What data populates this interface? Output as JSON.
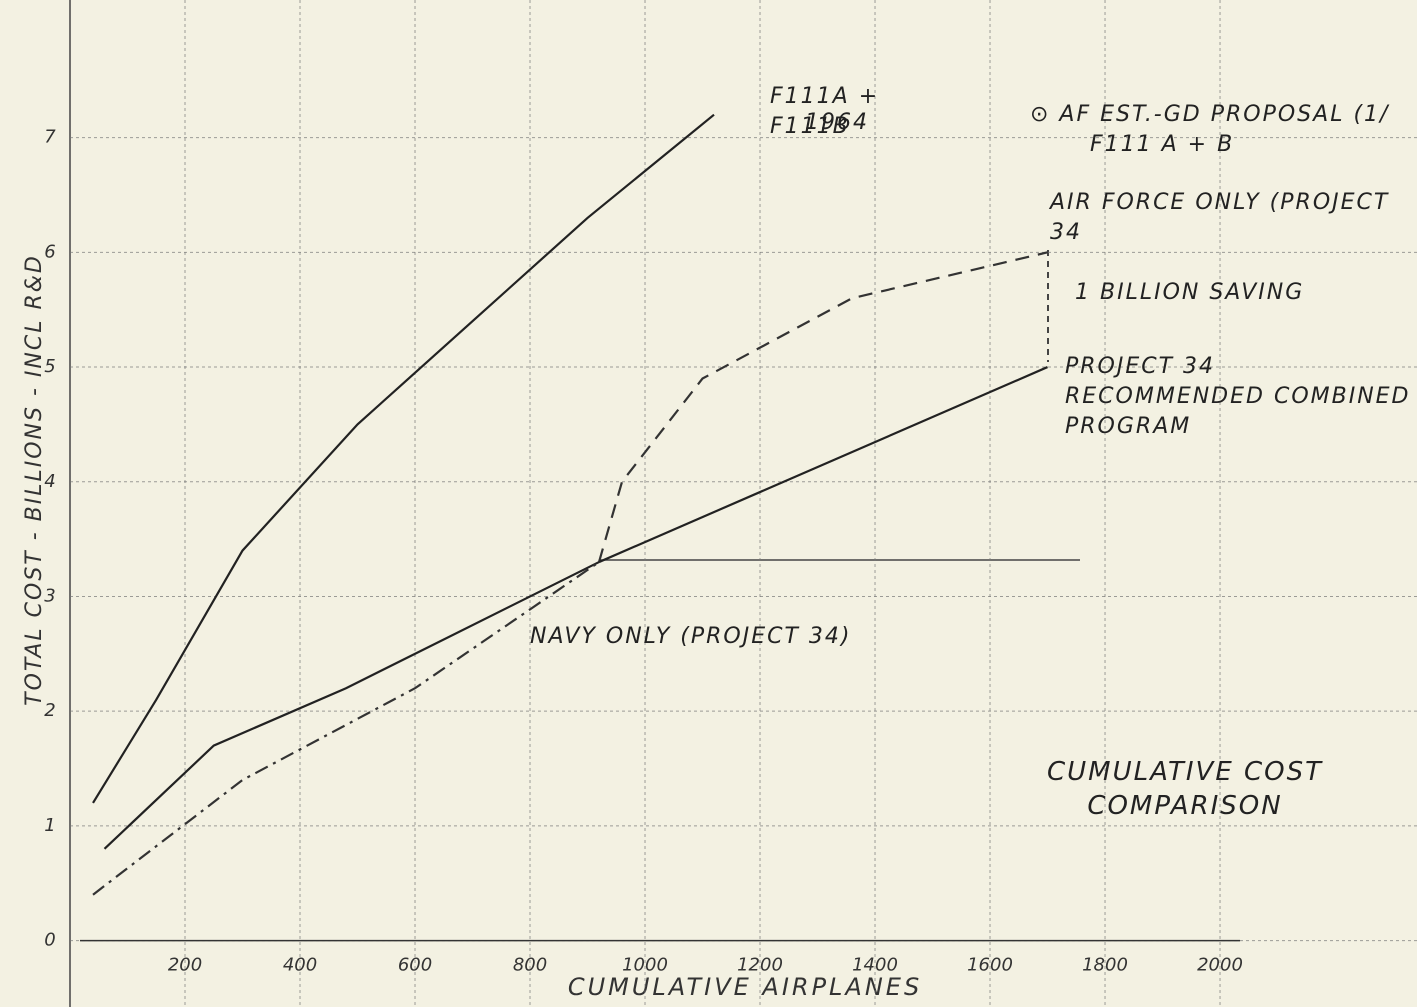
{
  "chart_data": {
    "type": "line",
    "title": "CUMULATIVE COST COMPARISON",
    "x_label": "CUMULATIVE AIRPLANES",
    "y_label": "TOTAL COST - BILLIONS - INCL R&D",
    "xlim": [
      0,
      2313
    ],
    "ylim": [
      -0.3,
      8.2
    ],
    "xticks": [
      200,
      400,
      600,
      800,
      1000,
      1200,
      1400,
      1600,
      1800,
      2000
    ],
    "yticks": [
      0,
      1,
      2,
      3,
      4,
      5,
      6,
      7
    ],
    "grid": true,
    "series": [
      {
        "name": "F111A + F111B",
        "color": "#222222",
        "style": "solid",
        "x": [
          40,
          150,
          300,
          500,
          700,
          900,
          1120
        ],
        "values": [
          1.2,
          2.1,
          3.4,
          4.5,
          5.4,
          6.3,
          7.2
        ]
      },
      {
        "name": "NAVY ONLY (PROJECT 34)",
        "color": "#222222",
        "style": "solid",
        "x": [
          60,
          250,
          480,
          920
        ],
        "values": [
          0.8,
          1.7,
          2.2,
          3.3
        ]
      },
      {
        "color": "#333333",
        "style": "dash-dot",
        "x": [
          40,
          300,
          600,
          920
        ],
        "values": [
          0.4,
          1.4,
          2.2,
          3.3
        ]
      },
      {
        "name": "AIR FORCE ONLY (PROJECT 34",
        "color": "#333333",
        "style": "dashed",
        "x": [
          920,
          960,
          1100,
          1360,
          1700
        ],
        "values": [
          3.3,
          4.0,
          4.9,
          5.6,
          6.0
        ]
      },
      {
        "name": "PROJECT 34 RECOMMENDED COMBINED PROGRAM",
        "color": "#222222",
        "style": "solid",
        "x": [
          920,
          1700
        ],
        "values": [
          3.3,
          5.0
        ]
      }
    ],
    "annotations": [
      "1964",
      "⊙ AF EST.-GD PROPOSAL (1/",
      "F111 A + B",
      "1 BILLION SAVING"
    ]
  }
}
